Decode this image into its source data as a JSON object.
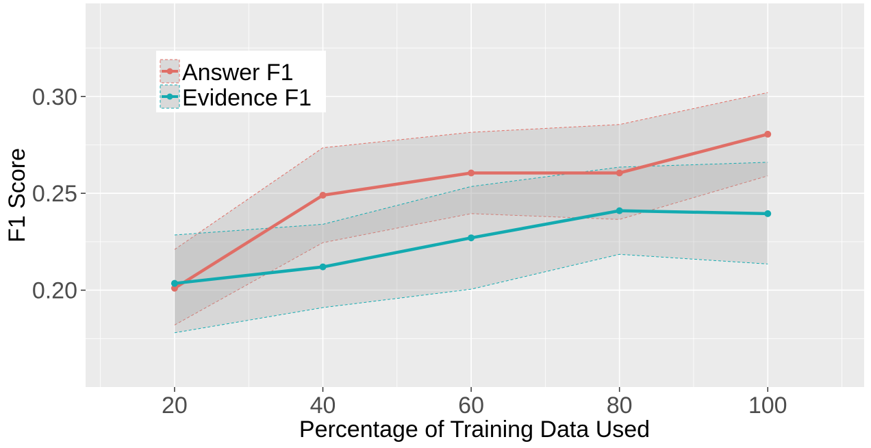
{
  "chart_data": {
    "type": "line",
    "title": "",
    "xlabel": "Percentage of Training Data Used",
    "ylabel": "F1 Score",
    "x": [
      20,
      40,
      60,
      80,
      100
    ],
    "xlim": [
      8,
      113
    ],
    "ylim": [
      0.15,
      0.348
    ],
    "xticks": [
      20,
      40,
      60,
      80,
      100
    ],
    "yticks": [
      0.2,
      0.25,
      0.3
    ],
    "ytick_labels": [
      "0.20",
      "0.25",
      "0.30"
    ],
    "xtick_labels": [
      "20",
      "40",
      "60",
      "80",
      "100"
    ],
    "grid": true,
    "legend_position": "top-left",
    "series": [
      {
        "name": "Answer F1",
        "color": "#e06e66",
        "values": [
          0.201,
          0.249,
          0.2605,
          0.2605,
          0.2805
        ],
        "upper": [
          0.221,
          0.2735,
          0.2815,
          0.2855,
          0.302
        ],
        "lower": [
          0.182,
          0.2245,
          0.2395,
          0.2365,
          0.259
        ]
      },
      {
        "name": "Evidence F1",
        "color": "#13aab0",
        "values": [
          0.2035,
          0.212,
          0.227,
          0.241,
          0.2395
        ],
        "upper": [
          0.2285,
          0.234,
          0.2535,
          0.2635,
          0.266
        ],
        "lower": [
          0.178,
          0.191,
          0.2005,
          0.2185,
          0.2135
        ]
      }
    ]
  }
}
